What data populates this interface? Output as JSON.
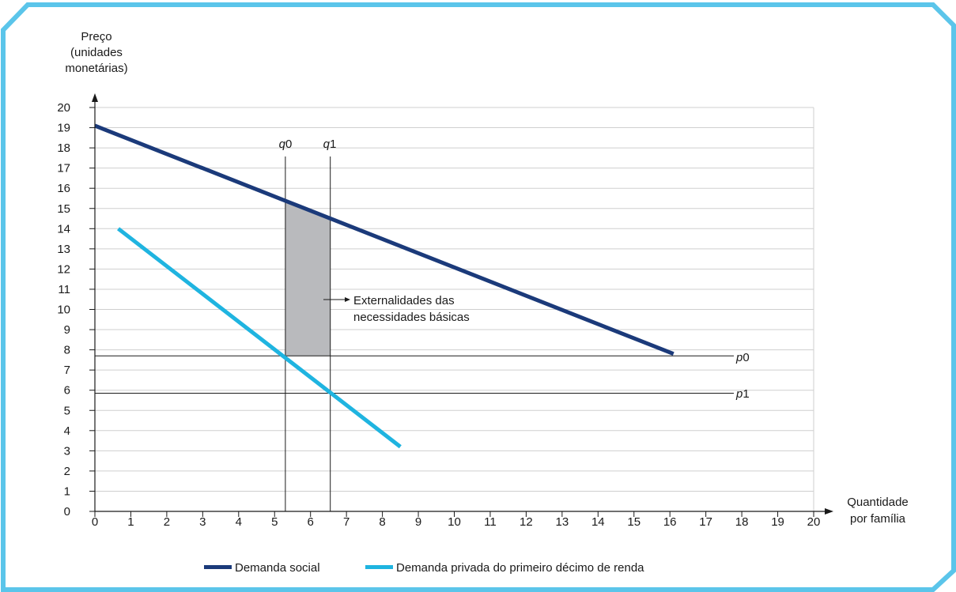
{
  "frame_color": "#5bc5ea",
  "chart_data": {
    "type": "line",
    "title": "",
    "ylabel_lines": [
      "Preço",
      "(unidades",
      "monetárias)"
    ],
    "xlabel_lines": [
      "Quantidade",
      "por família"
    ],
    "xlim": [
      0,
      20
    ],
    "ylim": [
      0,
      20
    ],
    "x_ticks": [
      0,
      1,
      2,
      3,
      4,
      5,
      6,
      7,
      8,
      9,
      10,
      11,
      12,
      13,
      14,
      15,
      16,
      17,
      18,
      19,
      20
    ],
    "y_ticks": [
      0,
      1,
      2,
      3,
      4,
      5,
      6,
      7,
      8,
      9,
      10,
      11,
      12,
      13,
      14,
      15,
      16,
      17,
      18,
      19,
      20
    ],
    "grid": "horizontal",
    "legend_position": "bottom",
    "series": [
      {
        "name": "Demanda social",
        "color": "#1b3a7a",
        "x": [
          0,
          16.1
        ],
        "y": [
          19.1,
          7.8
        ]
      },
      {
        "name": "Demanda privada do primeiro décimo de renda",
        "color": "#1fb4e0",
        "x": [
          0.65,
          8.5
        ],
        "y": [
          14,
          3.2
        ]
      }
    ],
    "reference_lines": {
      "vertical": [
        {
          "label_var": "q",
          "label_sub": "0",
          "x": 5.3
        },
        {
          "label_var": "q",
          "label_sub": "1",
          "x": 6.55
        }
      ],
      "horizontal": [
        {
          "label_var": "p",
          "label_sub": "0",
          "y": 7.7
        },
        {
          "label_var": "p",
          "label_sub": "1",
          "y": 5.85
        }
      ]
    },
    "shaded_area": {
      "color": "#b9babd",
      "x_range": [
        5.3,
        6.55
      ],
      "y_bottom": 7.7,
      "annotation_lines": [
        "Externalidades das",
        "necessidades básicas"
      ]
    }
  }
}
